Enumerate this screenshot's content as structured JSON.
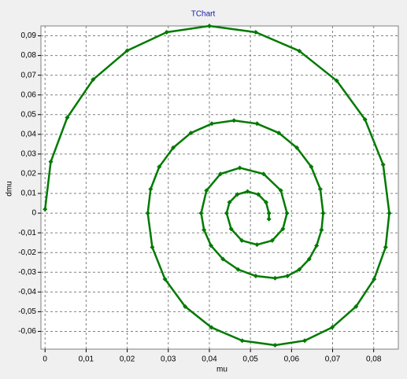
{
  "chart_data": {
    "type": "scatter",
    "title": "TChart",
    "x_label": "mu",
    "y_label": "dmu",
    "x": [
      0,
      0.0014,
      0.0054,
      0.0117,
      0.02,
      0.0296,
      0.04,
      0.0513,
      0.0619,
      0.071,
      0.0779,
      0.0823,
      0.0838,
      0.0829,
      0.0801,
      0.0757,
      0.0699,
      0.0632,
      0.056,
      0.048,
      0.0405,
      0.0341,
      0.0292,
      0.0261,
      0.025,
      0.0257,
      0.0278,
      0.0312,
      0.0355,
      0.0406,
      0.046,
      0.0516,
      0.0569,
      0.0613,
      0.0648,
      0.067,
      0.0677,
      0.0673,
      0.0661,
      0.0643,
      0.0619,
      0.059,
      0.056,
      0.0513,
      0.047,
      0.0433,
      0.0404,
      0.0387,
      0.038,
      0.0393,
      0.0427,
      0.0474,
      0.0532,
      0.0574,
      0.0589,
      0.0579,
      0.0553,
      0.0516,
      0.0479,
      0.0453,
      0.0442,
      0.0449,
      0.0468,
      0.0493,
      0.0519,
      0.0538,
      0.0545,
      0.0545
    ],
    "series": [
      {
        "color": "#007a00",
        "values": [
          0.002,
          0.0261,
          0.0485,
          0.0678,
          0.0825,
          0.0918,
          0.095,
          0.0918,
          0.0823,
          0.0672,
          0.0475,
          0.0246,
          0,
          -0.0173,
          -0.0335,
          -0.0474,
          -0.058,
          -0.0647,
          -0.067,
          -0.0647,
          -0.058,
          -0.0474,
          -0.0335,
          -0.0173,
          0,
          0.0122,
          0.0235,
          0.0332,
          0.0407,
          0.0454,
          0.047,
          0.0454,
          0.0407,
          0.0332,
          0.0235,
          0.0122,
          0,
          -0.0085,
          -0.0165,
          -0.0233,
          -0.0286,
          -0.0319,
          -0.033,
          -0.0319,
          -0.0286,
          -0.0233,
          -0.0165,
          -0.0085,
          0,
          0.0115,
          0.0199,
          0.023,
          0.0199,
          0.0115,
          0,
          -0.008,
          -0.0139,
          -0.016,
          -0.0139,
          -0.008,
          0,
          0.0055,
          0.0095,
          0.011,
          0.0095,
          0.0055,
          0,
          -0.003
        ]
      }
    ],
    "xlim": [
      -0.001,
      0.086
    ],
    "ylim": [
      -0.069,
      0.095
    ],
    "xticks": [
      0,
      {
        "value": 0.01,
        "label": "0,01"
      },
      {
        "value": 0.02,
        "label": "0,02"
      },
      {
        "value": 0.03,
        "label": "0,03"
      },
      {
        "value": 0.04,
        "label": "0,04"
      },
      {
        "value": 0.05,
        "label": "0,05"
      },
      {
        "value": 0.06,
        "label": "0,06"
      },
      {
        "value": 0.07,
        "label": "0,07"
      },
      {
        "value": 0.08,
        "label": "0,08"
      }
    ],
    "yticks": [
      {
        "value": -0.06,
        "label": "-0,06"
      },
      {
        "value": -0.05,
        "label": "-0,05"
      },
      {
        "value": -0.04,
        "label": "-0,04"
      },
      {
        "value": -0.03,
        "label": "-0,03"
      },
      {
        "value": -0.02,
        "label": "-0,02"
      },
      {
        "value": -0.01,
        "label": "-0,01"
      },
      0,
      {
        "value": 0.01,
        "label": "0,01"
      },
      {
        "value": 0.02,
        "label": "0,02"
      },
      {
        "value": 0.03,
        "label": "0,03"
      },
      {
        "value": 0.04,
        "label": "0,04"
      },
      {
        "value": 0.05,
        "label": "0,05"
      },
      {
        "value": 0.06,
        "label": "0,06"
      },
      {
        "value": 0.07,
        "label": "0,07"
      },
      {
        "value": 0.08,
        "label": "0,08"
      },
      {
        "value": 0.09,
        "label": "0,09"
      }
    ],
    "grid": true
  }
}
